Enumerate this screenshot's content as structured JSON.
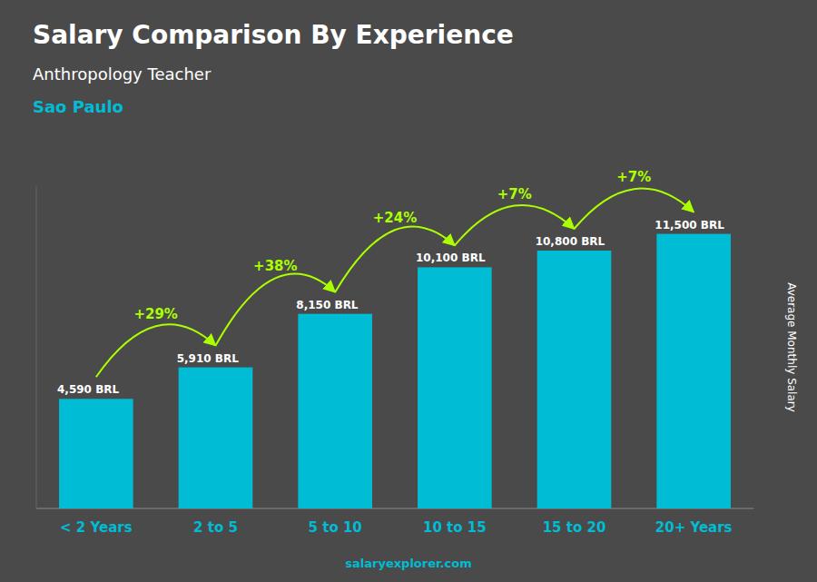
{
  "chart_data": {
    "type": "bar",
    "title": "Salary Comparison By Experience",
    "subtitle": "Anthropology Teacher",
    "annotations": [
      "Sao Paulo",
      "+29%",
      "+38%",
      "+24%",
      "+7%",
      "+7%",
      "salaryexplorer.com"
    ],
    "y_label": "Average Monthly Salary",
    "categories": [
      "< 2 Years",
      "2 to 5",
      "5 to 10",
      "10 to 15",
      "15 to 20",
      "20+ Years"
    ],
    "values": [
      4590,
      5910,
      8150,
      10100,
      10800,
      11500
    ],
    "value_labels": [
      "4,590 BRL",
      "5,910 BRL",
      "8,150 BRL",
      "10,100 BRL",
      "10,800 BRL",
      "11,500 BRL"
    ],
    "data_labels": true,
    "color": "#00bcd4",
    "ylim": [
      0,
      13500
    ],
    "tick_labels": "x",
    "grid": false
  }
}
